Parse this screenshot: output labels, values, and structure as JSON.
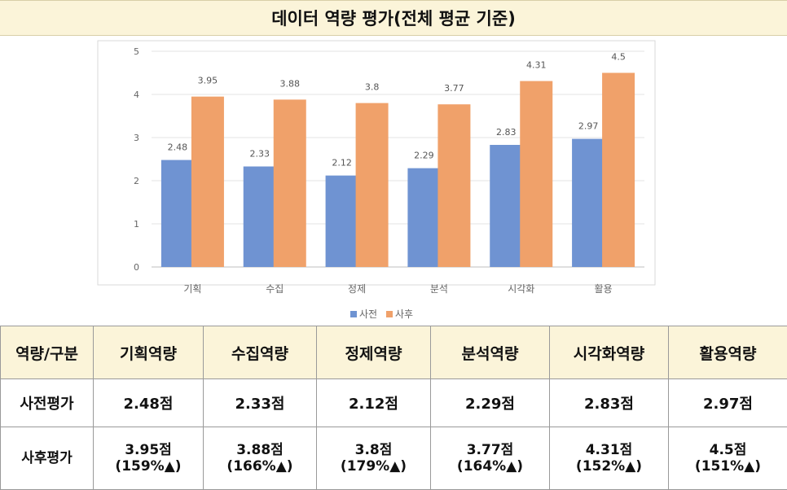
{
  "title": "데이터 역량 평가(전체 평균 기준)",
  "chart_data": {
    "type": "bar",
    "categories": [
      "기획",
      "수집",
      "정제",
      "분석",
      "시각화",
      "활용"
    ],
    "series": [
      {
        "name": "사전",
        "values": [
          2.48,
          2.33,
          2.12,
          2.29,
          2.83,
          2.97
        ],
        "color": "#6f93d2"
      },
      {
        "name": "사후",
        "values": [
          3.95,
          3.88,
          3.8,
          3.77,
          4.31,
          4.5
        ],
        "color": "#f0a16a"
      }
    ],
    "ylim": [
      0,
      5
    ],
    "yticks": [
      0,
      1,
      2,
      3,
      4,
      5
    ],
    "grid": true,
    "legend": "bottom"
  },
  "table": {
    "corner": "역량/구분",
    "headers": [
      "기획역량",
      "수집역량",
      "정제역량",
      "분석역량",
      "시각화역량",
      "활용역량"
    ],
    "pre_label": "사전평가",
    "pre_values": [
      "2.48점",
      "2.33점",
      "2.12점",
      "2.29점",
      "2.83점",
      "2.97점"
    ],
    "post_label": "사후평가",
    "post_values": [
      "3.95점",
      "3.88점",
      "3.8점",
      "3.77점",
      "4.31점",
      "4.5점"
    ],
    "post_changes": [
      "(159%▲)",
      "(166%▲)",
      "(179%▲)",
      "(164%▲)",
      "(152%▲)",
      "(151%▲)"
    ]
  }
}
